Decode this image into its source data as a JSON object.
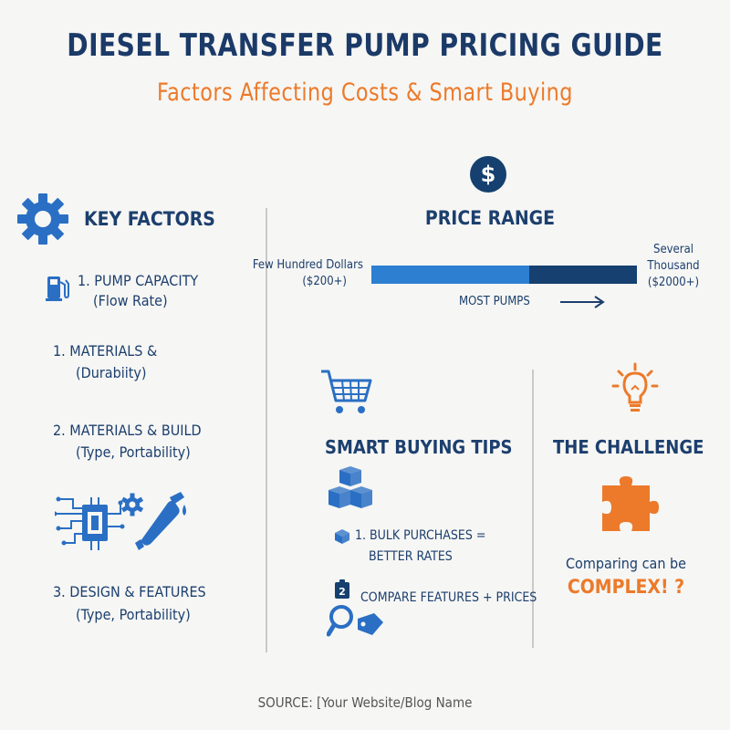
{
  "header": {
    "title": "DIESEL TRANSFER PUMP PRICING GUIDE",
    "subtitle": "Factors Affecting Costs & Smart Buying"
  },
  "key_factors": {
    "heading": "KEY FACTORS",
    "items": [
      {
        "line1": "1. PUMP CAPACITY",
        "line2": "(Flow Rate)"
      },
      {
        "line1": "1.  MATERIALS &",
        "line2": "(Durabiity)"
      },
      {
        "line1": "2.  MATERIALS & BUILD",
        "line2": "(Type, Portability)"
      },
      {
        "line1": "3.  DESIGN & FEATURES",
        "line2": "(Type, Portability)"
      }
    ]
  },
  "price_range": {
    "heading": "PRICE RANGE",
    "low_label": "Few Hundred Dollars",
    "low_value": "($200+)",
    "high_label_1": "Several",
    "high_label_2": "Thousand",
    "high_value": "($2000+)",
    "most_pumps": "MOST PUMPS"
  },
  "smart_buying": {
    "heading": "SMART BUYING TIPS",
    "tip1_line1": "1. BULK PURCHASES =",
    "tip1_line2": "BETTER RATES",
    "tip2": "COMPARE FEATURES + PRICES",
    "tip2_badge": "2"
  },
  "challenge": {
    "heading": "THE CHALLENGE",
    "line1": "Comparing can be",
    "line2": "COMPLEX! ?"
  },
  "footer": {
    "source": "SOURCE: [Your Website/Blog Name"
  },
  "colors": {
    "navy": "#1c3f6e",
    "orange": "#ec7a2a",
    "blue": "#2d7fd2",
    "dark_blue": "#15406f"
  },
  "icons": [
    "gear-icon",
    "fuel-pump-icon",
    "circuit-chip-icon",
    "small-gear-icon",
    "fuel-nozzle-icon",
    "dollar-icon",
    "arrow-right-icon",
    "shopping-cart-icon",
    "boxes-icon",
    "box-icon",
    "tag-number-icon",
    "magnifier-tag-icon",
    "lightbulb-icon",
    "puzzle-piece-icon"
  ]
}
